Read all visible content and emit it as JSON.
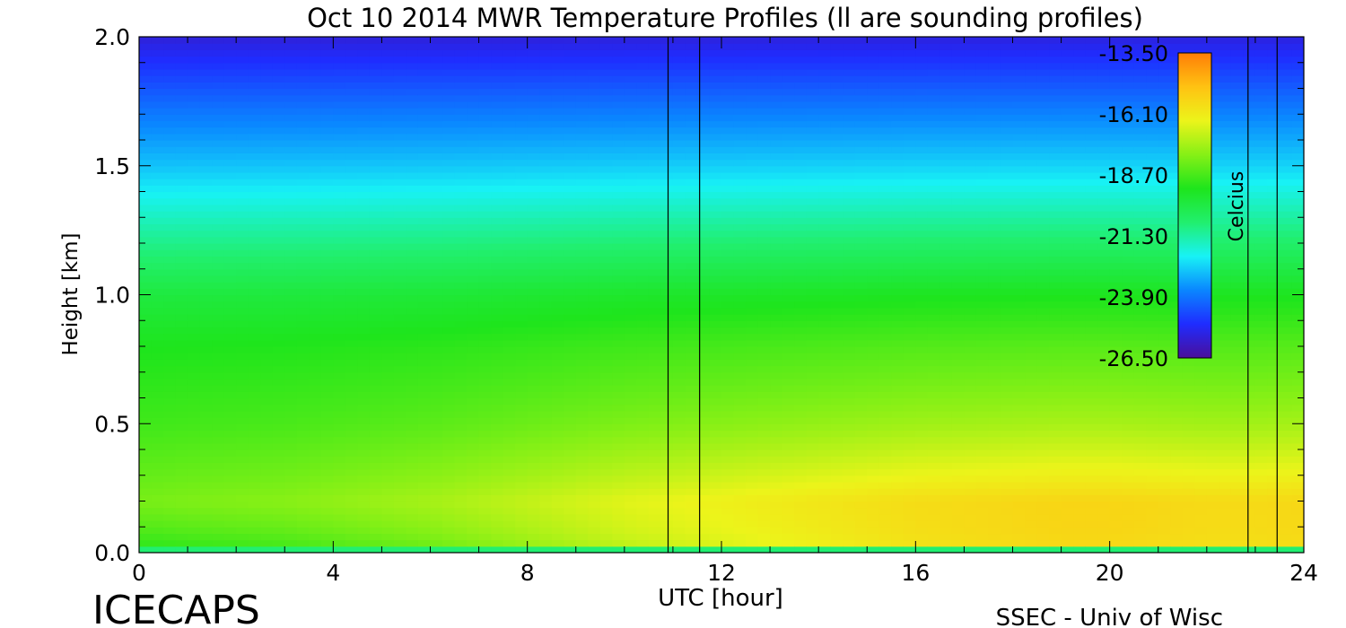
{
  "chart_data": {
    "type": "heatmap",
    "title": "Oct 10 2014 MWR Temperature Profiles (ll are sounding profiles)",
    "xlabel": "UTC [hour]",
    "ylabel": "Height [km]",
    "xlim": [
      0,
      24
    ],
    "ylim": [
      0,
      2.0
    ],
    "x_ticks": [
      "0",
      "4",
      "8",
      "12",
      "16",
      "20",
      "24"
    ],
    "y_ticks": [
      "0.0",
      "0.5",
      "1.0",
      "1.5",
      "2.0"
    ],
    "x_tick_values": [
      0,
      4,
      8,
      12,
      16,
      20,
      24
    ],
    "y_tick_values": [
      0,
      0.5,
      1.0,
      1.5,
      2.0
    ],
    "colorbar": {
      "label": "Celcius",
      "range": [
        -26.5,
        -13.5
      ],
      "ticks": [
        "-13.50",
        "-16.10",
        "-18.70",
        "-21.30",
        "-23.90",
        "-26.50"
      ],
      "tick_values": [
        -13.5,
        -16.1,
        -18.7,
        -21.3,
        -23.9,
        -26.5
      ]
    },
    "sounding_times_utc": [
      10.9,
      11.55,
      22.85,
      23.45
    ],
    "colormap": [
      "#4a0f9a",
      "#1f2cff",
      "#0a86ff",
      "#18f2f5",
      "#21ef6e",
      "#1ee51c",
      "#86f016",
      "#ecf41a",
      "#ffc212",
      "#ff7e07"
    ],
    "temperature_grid": {
      "utc_hours": [
        0.3,
        1.0,
        2.0,
        3.0,
        4.0,
        5.0,
        6.0,
        7.0,
        8.0,
        9.0,
        10.0,
        11.0,
        12.0,
        13.0,
        14.0,
        15.0,
        16.0,
        17.0,
        18.0,
        19.0,
        20.0,
        21.0,
        22.0,
        23.0,
        24.0
      ],
      "heights_km": [
        0.0,
        0.03,
        0.1,
        0.2,
        0.3,
        0.5,
        0.8,
        1.0,
        1.25,
        1.5,
        1.7,
        2.0
      ],
      "base_profile_c": [
        -22.0,
        -19.0,
        -18.5,
        -18.0,
        -18.3,
        -18.8,
        -19.3,
        -19.9,
        -21.3,
        -22.8,
        -23.8,
        -25.6
      ],
      "surface_warming_c": [
        0.0,
        0.1,
        0.2,
        0.3,
        0.5,
        0.7,
        0.9,
        1.2,
        1.5,
        1.8,
        2.1,
        2.3,
        2.5,
        2.7,
        2.9,
        3.1,
        3.3,
        3.4,
        3.5,
        3.6,
        3.6,
        3.5,
        3.4,
        3.4,
        3.5
      ]
    }
  },
  "footer": {
    "left_text": "ICECAPS",
    "right_text": "SSEC - Univ of Wisc"
  },
  "colors": {
    "axis": "#000000",
    "background": "#ffffff"
  }
}
